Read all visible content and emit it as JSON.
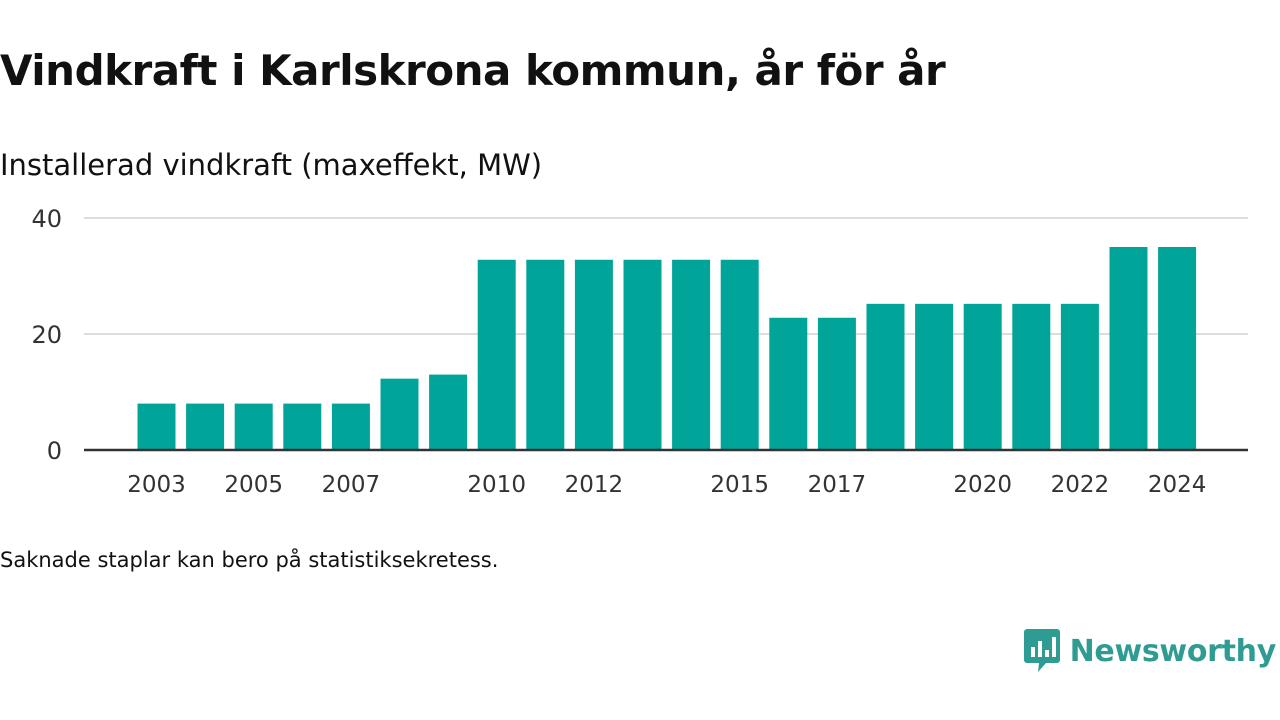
{
  "chart_data": {
    "type": "bar",
    "title": "Vindkraft i Karlskrona kommun, år för år",
    "subtitle": "Installerad vindkraft (maxeffekt, MW)",
    "categories": [
      "2003",
      "2004",
      "2005",
      "2006",
      "2007",
      "2008",
      "2009",
      "2010",
      "2011",
      "2012",
      "2013",
      "2014",
      "2015",
      "2016",
      "2017",
      "2018",
      "2019",
      "2020",
      "2021",
      "2022",
      "2023",
      "2024"
    ],
    "x_tick_labels": [
      "2003",
      "2005",
      "2007",
      "2010",
      "2012",
      "2015",
      "2017",
      "2020",
      "2022",
      "2024"
    ],
    "values": [
      8,
      8,
      8,
      8,
      8,
      12.3,
      13,
      32.8,
      32.8,
      32.8,
      32.8,
      32.8,
      32.8,
      22.8,
      22.8,
      25.2,
      25.2,
      25.2,
      25.2,
      25.2,
      35,
      35
    ],
    "ylim": [
      0,
      40
    ],
    "y_ticks": [
      0,
      20,
      40
    ],
    "grid": true,
    "bar_color": "#00a499",
    "grid_color": "#dddddd",
    "axis_color": "#333333",
    "footnote": "Saknade staplar kan bero på statistiksekretess."
  },
  "brand": {
    "name": "Newsworthy",
    "color": "#2f9c94",
    "icon": "newsworthy-logo-icon"
  }
}
